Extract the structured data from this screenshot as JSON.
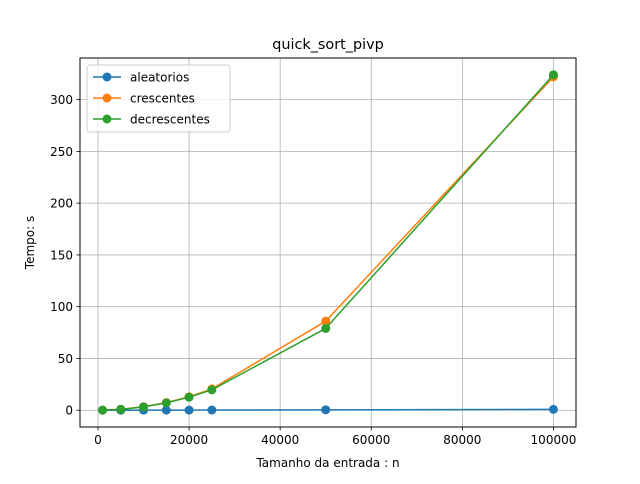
{
  "chart_data": {
    "type": "line",
    "title": "quick_sort_pivp",
    "xlabel": "Tamanho da entrada : n",
    "ylabel": "Tempo: s",
    "xlim": [
      -3950,
      104950
    ],
    "ylim": [
      -16.2,
      340.2
    ],
    "xticks": [
      0,
      20000,
      40000,
      60000,
      80000,
      100000
    ],
    "yticks": [
      0,
      50,
      100,
      150,
      200,
      250,
      300
    ],
    "grid": true,
    "legend_position": "top-left",
    "x": [
      1000,
      5000,
      10000,
      15000,
      20000,
      25000,
      50000,
      100000
    ],
    "series": [
      {
        "name": "aleatorios",
        "color": "#1f77b4",
        "values": [
          0.01,
          0.03,
          0.06,
          0.1,
          0.13,
          0.17,
          0.38,
          0.82
        ]
      },
      {
        "name": "crescentes",
        "color": "#ff7f0e",
        "values": [
          0.1,
          0.9,
          3.4,
          7.4,
          13.0,
          20.6,
          86.0,
          322.0
        ]
      },
      {
        "name": "decrescentes",
        "color": "#2ca02c",
        "values": [
          0.1,
          0.8,
          3.2,
          7.1,
          12.6,
          19.7,
          79.0,
          324.0
        ]
      }
    ]
  }
}
